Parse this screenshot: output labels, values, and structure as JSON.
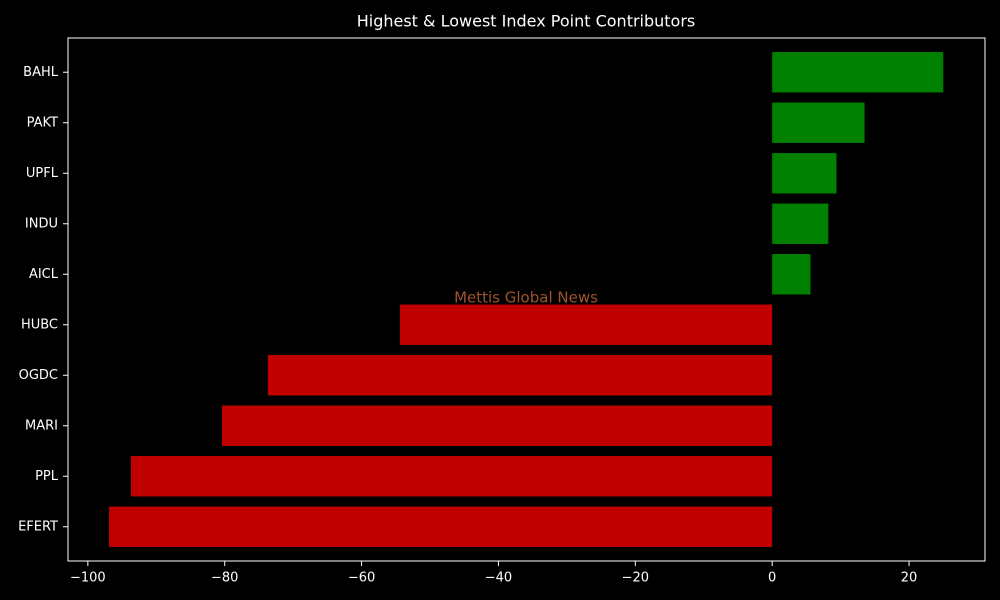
{
  "chart_data": {
    "type": "barh",
    "title": "Highest & Lowest Index Point Contributors",
    "annotation": "Mettis Global News",
    "categories": [
      "BAHL",
      "PAKT",
      "UPFL",
      "INDU",
      "AICL",
      "HUBC",
      "OGDC",
      "MARI",
      "PPL",
      "EFERT"
    ],
    "values": [
      25.0,
      13.5,
      9.4,
      8.2,
      5.6,
      -54.4,
      -73.7,
      -80.4,
      -93.7,
      -96.9
    ],
    "colors": [
      "#008000",
      "#008000",
      "#008000",
      "#008000",
      "#008000",
      "#c00000",
      "#c00000",
      "#c00000",
      "#c00000",
      "#c00000"
    ],
    "xlim": [
      -102.9,
      31.1
    ],
    "xticks": [
      {
        "value": -100,
        "label": "−100"
      },
      {
        "value": -80,
        "label": "−80"
      },
      {
        "value": -60,
        "label": "−60"
      },
      {
        "value": -40,
        "label": "−40"
      },
      {
        "value": -20,
        "label": "−20"
      },
      0,
      20
    ],
    "grid": false
  }
}
